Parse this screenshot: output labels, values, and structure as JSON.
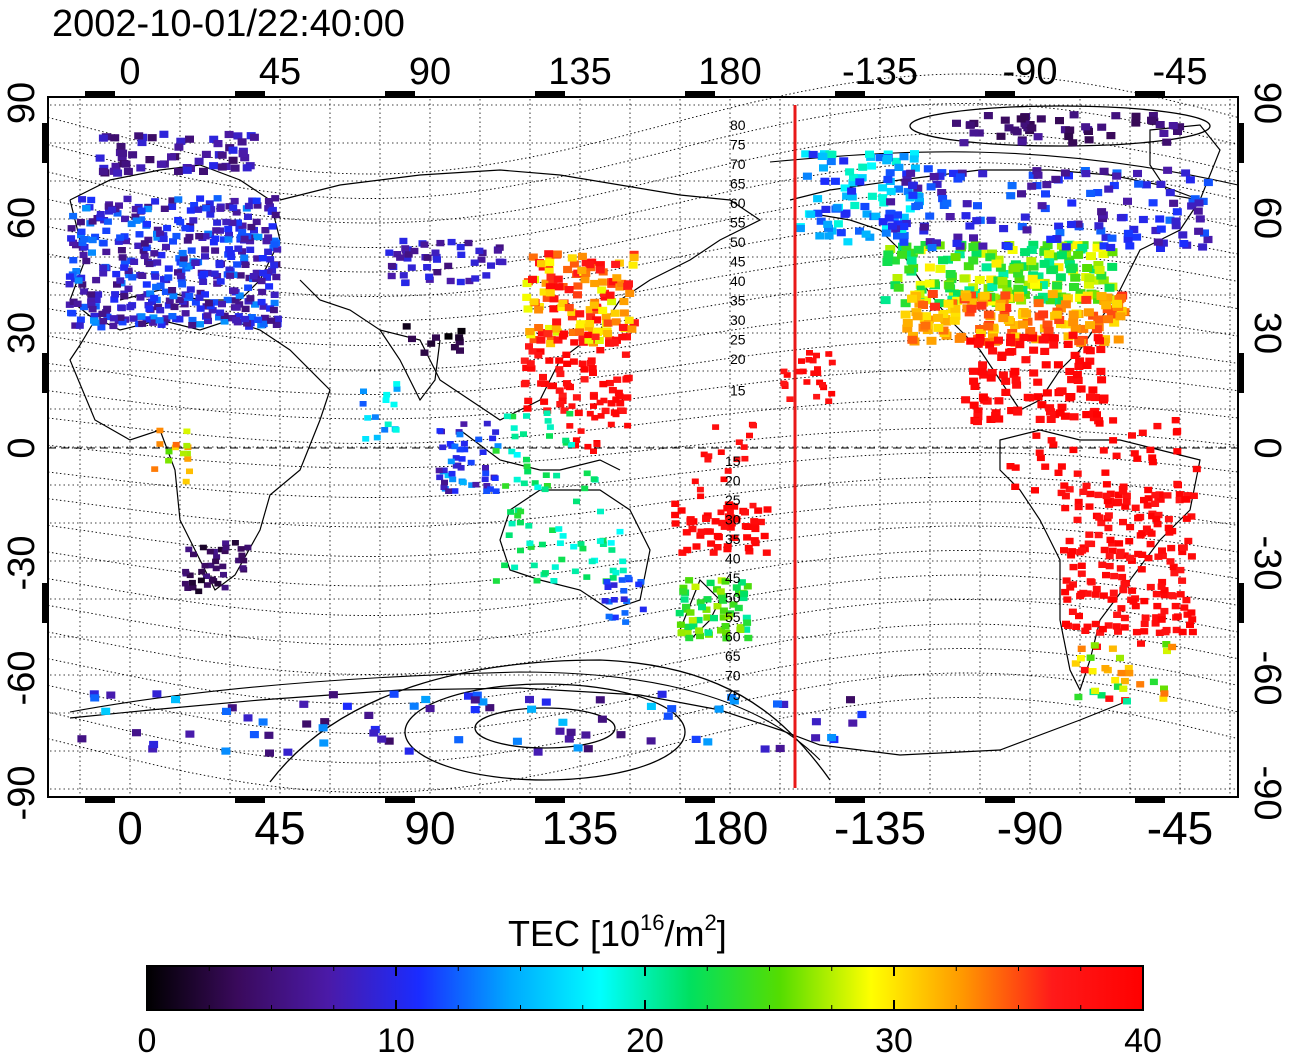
{
  "title": "2002-10-01/22:40:00",
  "map": {
    "x_tick_labels": [
      "0",
      "45",
      "90",
      "135",
      "180",
      "-135",
      "-90",
      "-45"
    ],
    "y_tick_labels": [
      "90",
      "60",
      "30",
      "0",
      "-30",
      "-60",
      "-90"
    ],
    "contour_labels_north": [
      "80",
      "75",
      "70",
      "65",
      "60",
      "55",
      "50",
      "45",
      "40",
      "35",
      "30",
      "25",
      "20",
      "15"
    ],
    "contour_labels_south": [
      "15",
      "20",
      "25",
      "30",
      "35",
      "40",
      "45",
      "50",
      "55",
      "60",
      "65",
      "70",
      "75"
    ],
    "terminator_longitude": -160,
    "terminator_color": "#e81818"
  },
  "colorbar": {
    "label_main": "TEC  [10",
    "label_sup1": "16",
    "label_mid": "/m",
    "label_sup2": "2",
    "label_end": "]",
    "tick_labels": [
      "0",
      "10",
      "20",
      "30",
      "40"
    ],
    "min": 0,
    "max": 40,
    "colors": [
      "#000000",
      "#3a0a5c",
      "#4b1aa8",
      "#1a2cff",
      "#00a8ff",
      "#00ffff",
      "#00e060",
      "#55dd00",
      "#ffff00",
      "#ff9900",
      "#ff1a1a",
      "#ff0000"
    ]
  }
}
